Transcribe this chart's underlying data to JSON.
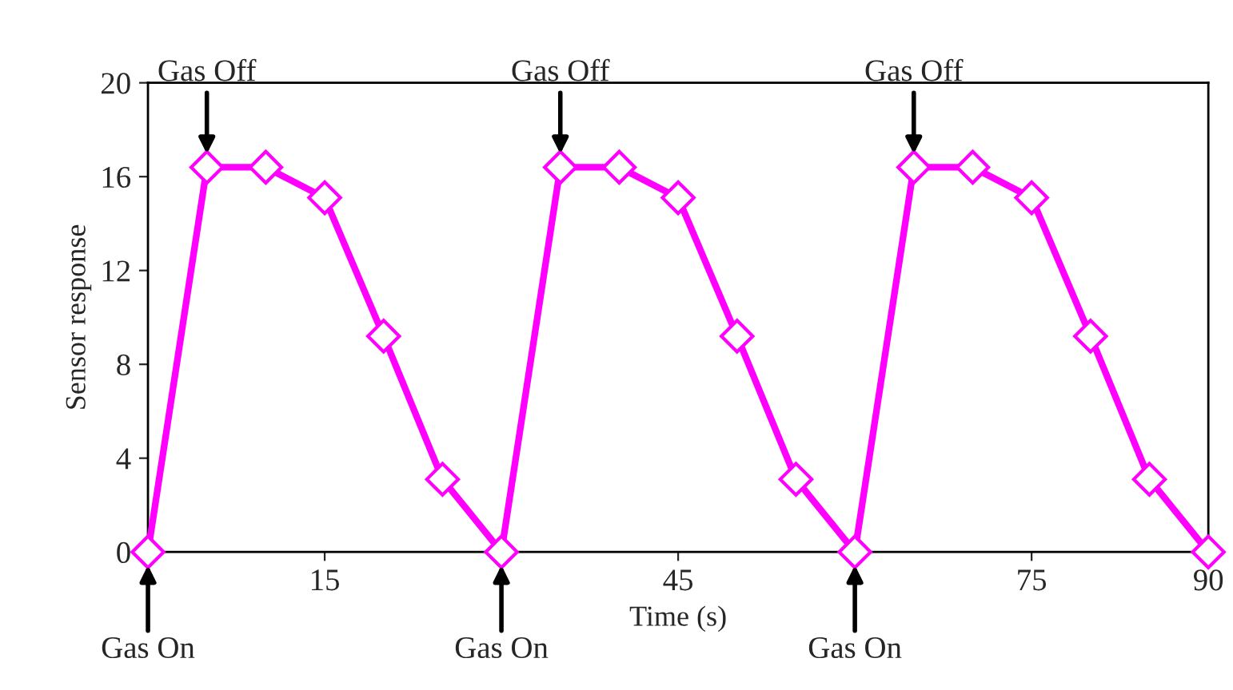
{
  "chart_data": {
    "type": "line",
    "xlabel": "Time (s)",
    "ylabel": "Sensor response",
    "x": [
      0,
      5,
      10,
      15,
      20,
      25,
      30,
      35,
      40,
      45,
      50,
      55,
      60,
      65,
      70,
      75,
      80,
      85,
      90
    ],
    "series": [
      {
        "color": "#ff00ff",
        "values": [
          0,
          16.4,
          16.4,
          15.1,
          9.2,
          3.1,
          0,
          16.4,
          16.4,
          15.1,
          9.2,
          3.1,
          0,
          16.4,
          16.4,
          15.1,
          9.2,
          3.1,
          0
        ]
      }
    ],
    "marker": "diamond",
    "line_style": "solid",
    "grid": false,
    "xlim": [
      0,
      90
    ],
    "xticks": [
      {
        "value": 0,
        "label": null
      },
      15,
      {
        "value": 30,
        "label": null
      },
      45,
      {
        "value": 60,
        "label": null
      },
      75,
      90
    ],
    "ylim": [
      0,
      20
    ],
    "yticks": [
      0,
      4,
      8,
      12,
      16,
      20
    ],
    "annotations": [
      {
        "text": "Gas On",
        "x": 0,
        "y": 0
      },
      {
        "text": "Gas On",
        "x": 30,
        "y": 0
      },
      {
        "text": "Gas On",
        "x": 60,
        "y": 0
      },
      {
        "text": "Gas Off",
        "x": 5,
        "y": 16.4
      },
      {
        "text": "Gas Off",
        "x": 35,
        "y": 16.4
      },
      {
        "text": "Gas Off",
        "x": 65,
        "y": 16.4
      }
    ]
  }
}
